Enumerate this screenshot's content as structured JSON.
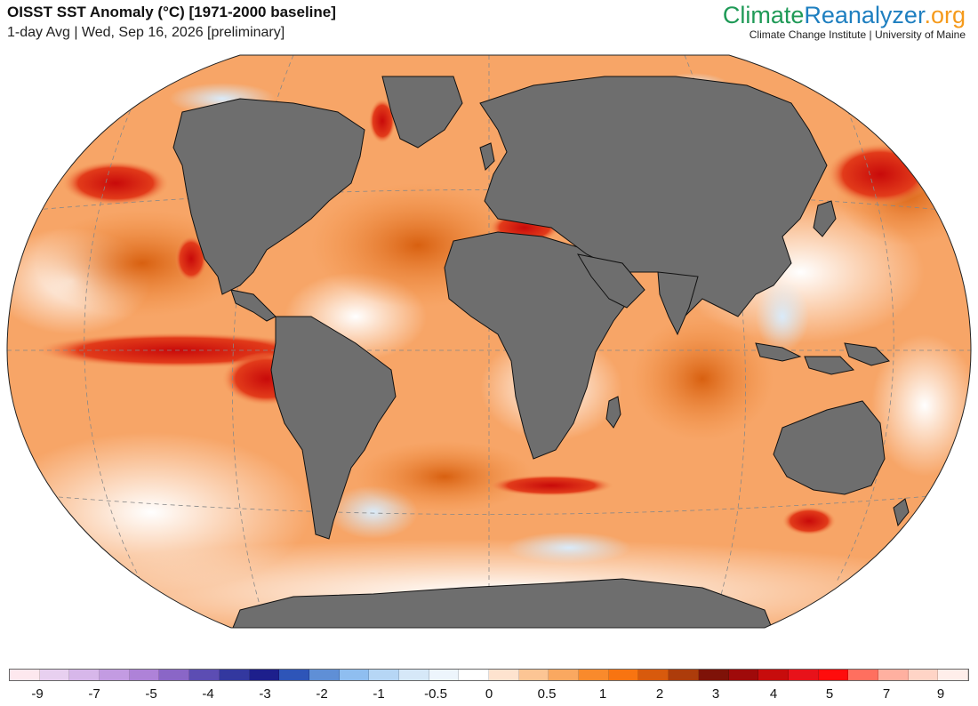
{
  "header": {
    "title": "OISST SST Anomaly (°C) [1971-2000 baseline]",
    "subtitle": "1-day Avg | Wed, Sep 16, 2026 [preliminary]"
  },
  "brand": {
    "logo_part1": "Climate",
    "logo_part2": "Reanalyzer",
    "logo_part3": ".org",
    "institution": "Climate Change Institute | University of Maine",
    "color_part1": "#1f9a57",
    "color_part2": "#1e7fc0",
    "color_part3": "#f59a1b"
  },
  "map": {
    "projection": "Winkel Tripel (oval)",
    "land_color": "#6e6e6e",
    "ocean_base_color": "#f7a567"
  },
  "legend": {
    "colors": [
      "#fde8ee",
      "#e8d0f0",
      "#d7b7ea",
      "#c39be2",
      "#ae82d8",
      "#8a66c7",
      "#5c4db3",
      "#33389f",
      "#1d1f8c",
      "#2e55b8",
      "#5f8fd6",
      "#8fbef0",
      "#b6d6f5",
      "#d6e8f8",
      "#edf5fc",
      "#ffffff",
      "#fee3cf",
      "#fcc594",
      "#faa860",
      "#f98a2c",
      "#f87411",
      "#d85a0d",
      "#ad3c0b",
      "#7e1208",
      "#9f0a0a",
      "#c70c0c",
      "#e8121a",
      "#ff0c0c",
      "#ff6f5f",
      "#ffb0a0",
      "#ffd4c6",
      "#ffeeea"
    ],
    "ticks": [
      "-9",
      "-7",
      "-5",
      "-4",
      "-3",
      "-2",
      "-1",
      "-0.5",
      "0",
      "0.5",
      "1",
      "2",
      "3",
      "4",
      "5",
      "7",
      "9"
    ]
  }
}
